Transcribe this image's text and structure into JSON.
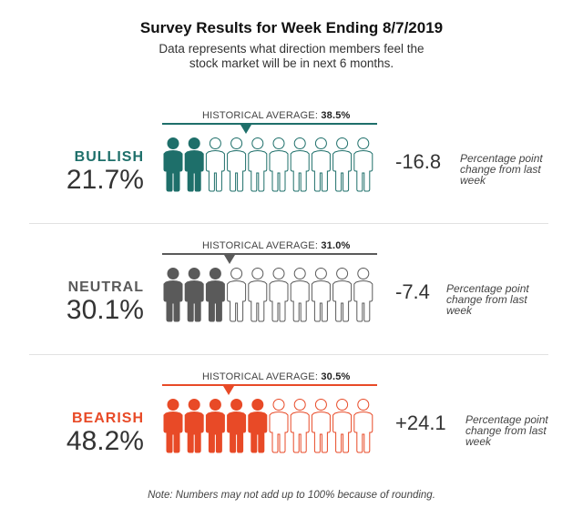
{
  "title": "Survey Results for Week Ending 8/7/2019",
  "subtitle": "Data represents what direction members feel the stock market will be in next 6 months.",
  "footnote": "Note: Numbers may not add up to 100% because of rounding.",
  "historical_prefix": "HISTORICAL AVERAGE: ",
  "change_note": "Percentage point change from last week",
  "chart_data": {
    "type": "bar",
    "categories": [
      "BULLISH",
      "NEUTRAL",
      "BEARISH"
    ],
    "series": [
      {
        "values": [
          21.7,
          30.1,
          48.2
        ]
      }
    ],
    "historical_average": [
      38.5,
      31.0,
      30.5
    ],
    "change_from_last_week": [
      -16.8,
      -7.4,
      24.1
    ],
    "icons_total": 10,
    "rows": [
      {
        "label": "BULLISH",
        "percent": "21.7%",
        "historical": "38.5%",
        "change": "-16.8",
        "filled_icons": 2,
        "color": "#1e6f6a",
        "pct_value": 21.7,
        "hist_value": 38.5
      },
      {
        "label": "NEUTRAL",
        "percent": "30.1%",
        "historical": "31.0%",
        "change": "-7.4",
        "filled_icons": 3,
        "color": "#5a5a5a",
        "pct_value": 30.1,
        "hist_value": 31.0
      },
      {
        "label": "BEARISH",
        "percent": "48.2%",
        "historical": "30.5%",
        "change": "+24.1",
        "filled_icons": 5,
        "color": "#e84a27",
        "pct_value": 48.2,
        "hist_value": 30.5
      }
    ]
  }
}
